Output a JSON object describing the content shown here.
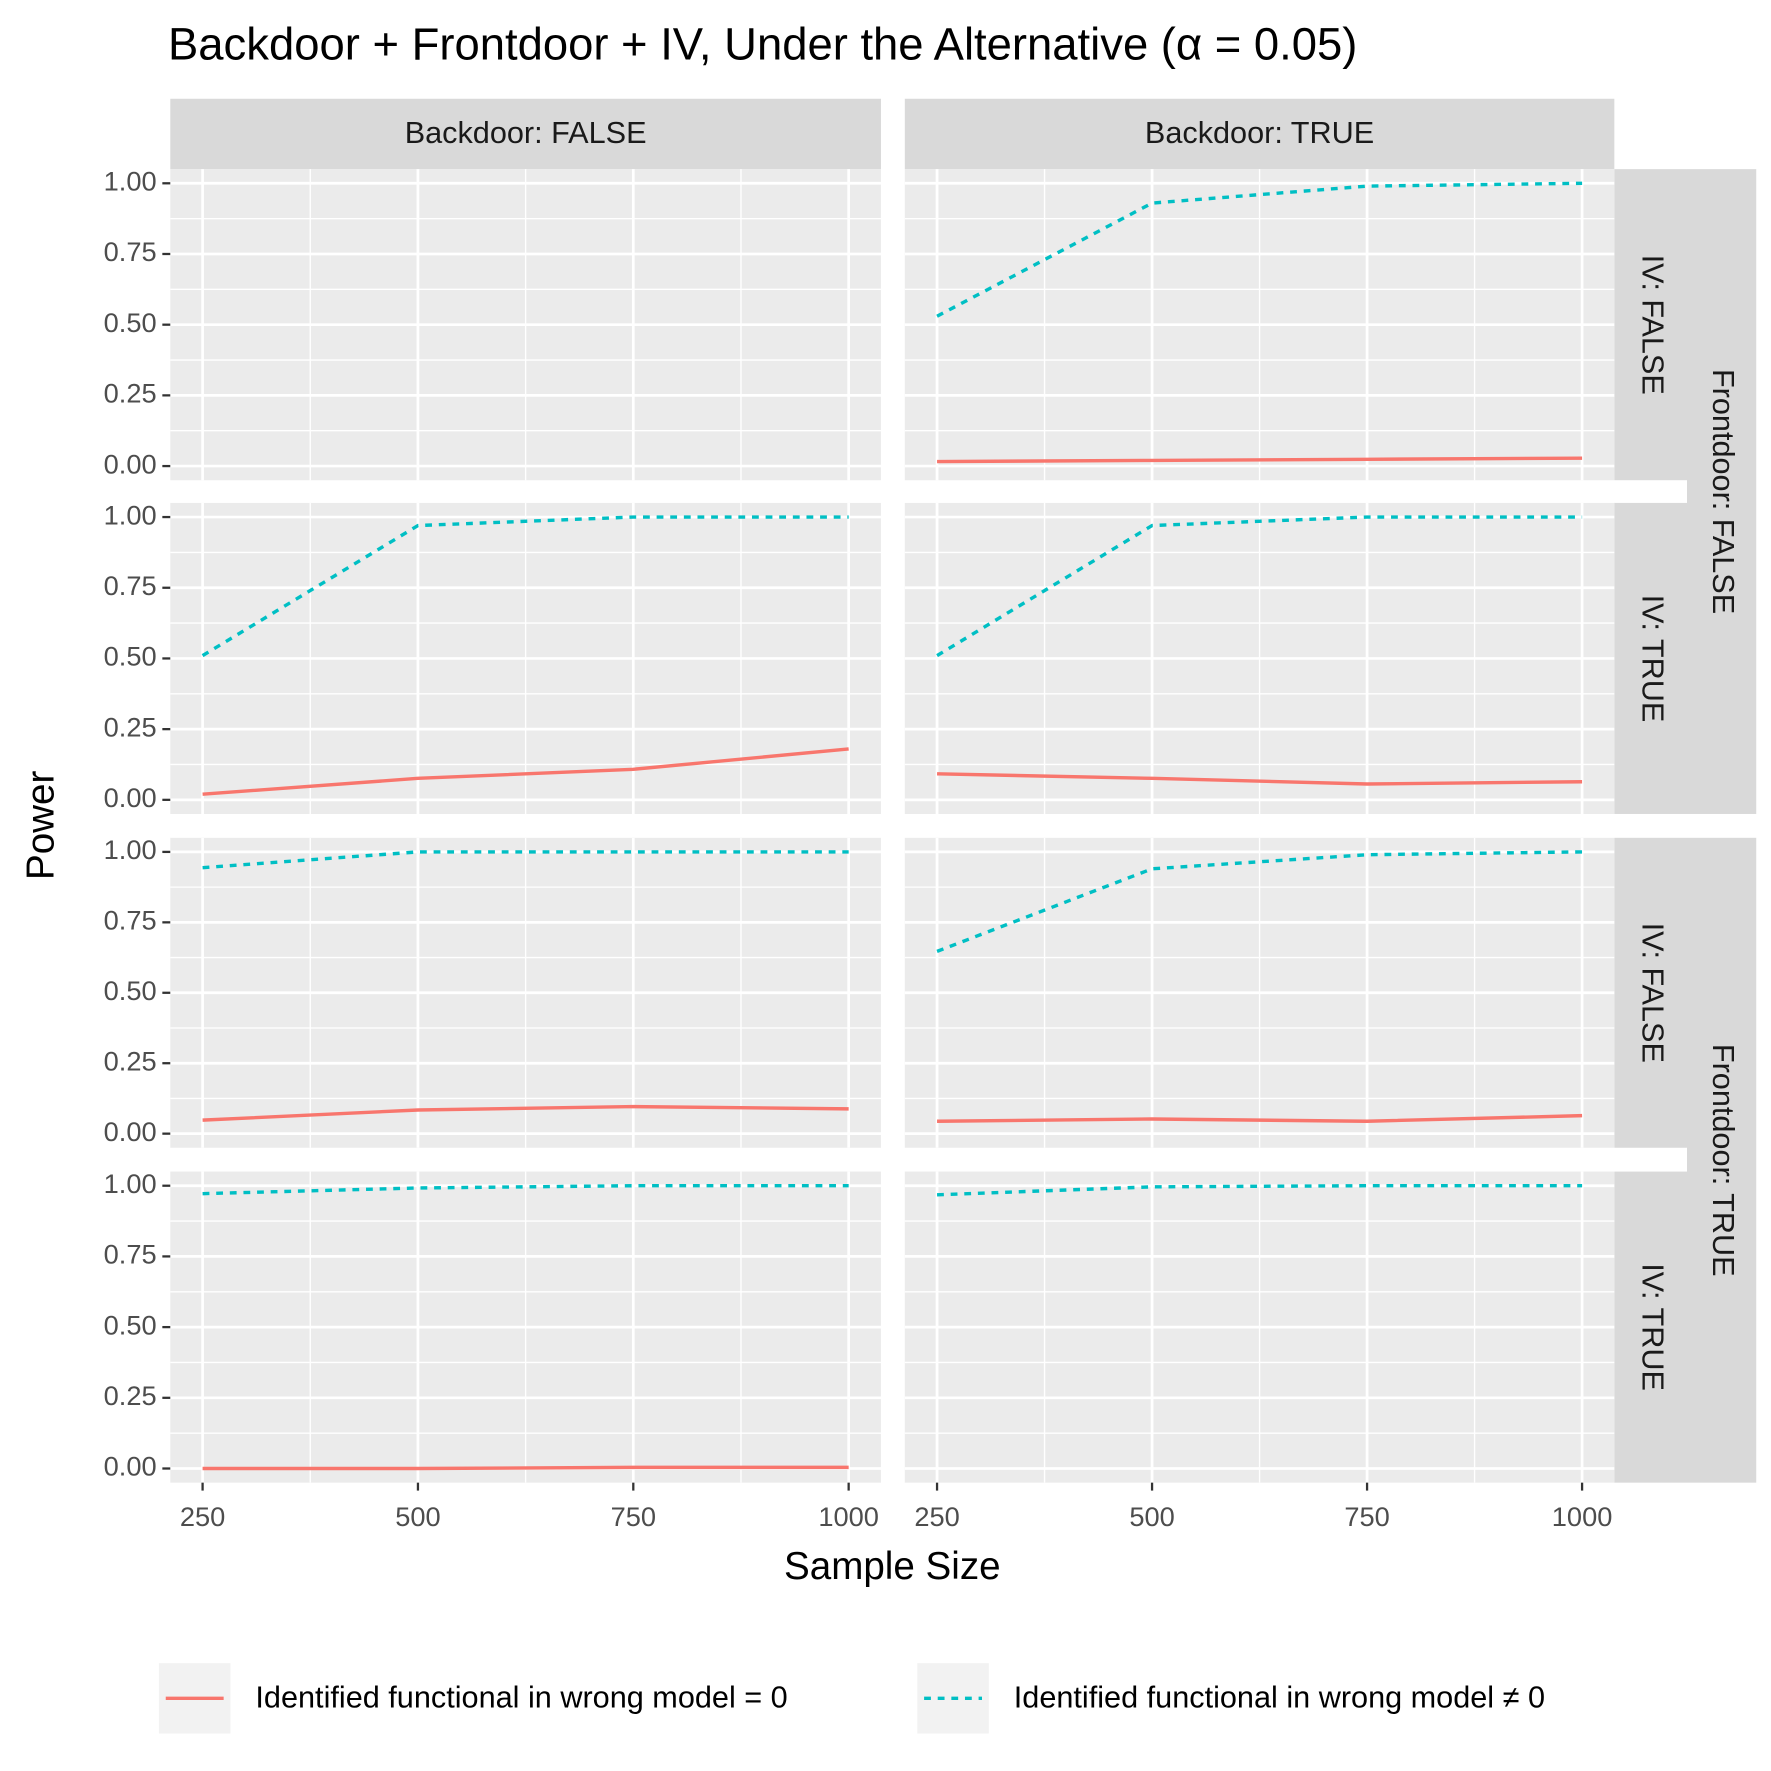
{
  "chart_data": {
    "type": "line",
    "title": "Backdoor + Frontdoor + IV, Under the Alternative (α = 0.05)",
    "x_label": "Sample Size",
    "y_label": "Power",
    "col_strips": [
      "Backdoor: FALSE",
      "Backdoor: TRUE"
    ],
    "row_strips": [
      "IV: FALSE",
      "IV: TRUE",
      "IV: FALSE",
      "IV: TRUE"
    ],
    "outer_row_strips": [
      "Frontdoor: FALSE",
      "Frontdoor: TRUE"
    ],
    "x": [
      250,
      500,
      750,
      1000
    ],
    "xlim": [
      212.5,
      1037.5
    ],
    "xticks": [
      250,
      500,
      750,
      1000
    ],
    "ylim": [
      -0.05,
      1.05
    ],
    "yticks": [
      {
        "value": 0,
        "label": "0.00"
      },
      {
        "value": 0.25,
        "label": "0.25"
      },
      {
        "value": 0.5,
        "label": "0.50"
      },
      {
        "value": 0.75,
        "label": "0.75"
      },
      {
        "value": 1,
        "label": "1.00"
      }
    ],
    "grid": true,
    "legend": "bottom",
    "series": [
      {
        "name": "Identified functional in wrong model = 0",
        "color": "#f8766d",
        "linestyle": "solid",
        "values": [
          [
            null,
            null,
            null,
            null
          ],
          [
            0.016,
            0.02,
            0.024,
            0.028
          ],
          [
            0.02,
            0.076,
            0.108,
            0.18
          ],
          [
            0.092,
            0.076,
            0.056,
            0.064
          ],
          [
            0.048,
            0.084,
            0.096,
            0.088
          ],
          [
            0.044,
            0.052,
            0.044,
            0.064
          ],
          [
            0.0,
            0.0,
            0.004,
            0.004
          ],
          [
            null,
            null,
            null,
            null
          ]
        ]
      },
      {
        "name": "Identified functional in wrong model ≠ 0",
        "color": "#00bfc4",
        "linestyle": "dotted",
        "values": [
          [
            null,
            null,
            null,
            null
          ],
          [
            0.53,
            0.93,
            0.99,
            1.0
          ],
          [
            0.51,
            0.97,
            1.0,
            1.0
          ],
          [
            0.51,
            0.97,
            1.0,
            1.0
          ],
          [
            0.944,
            1.0,
            1.0,
            1.0
          ],
          [
            0.647,
            0.94,
            0.99,
            1.0
          ],
          [
            0.972,
            0.992,
            1.0,
            1.0
          ],
          [
            0.968,
            0.996,
            1.0,
            1.0
          ]
        ]
      }
    ]
  }
}
